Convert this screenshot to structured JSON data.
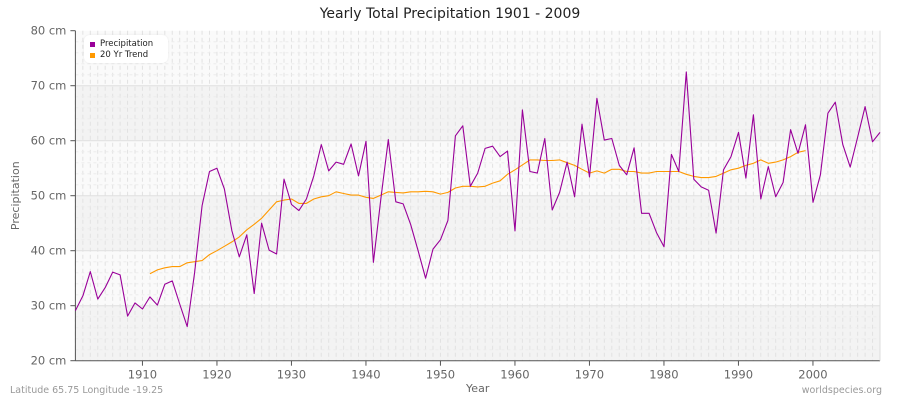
{
  "title": "Yearly Total Precipitation 1901 - 2009",
  "footer": {
    "location": "Latitude 65.75 Longitude -19.25",
    "source": "worldspecies.org"
  },
  "colors": {
    "precipitation": "#990099",
    "trend": "#ff9900",
    "band_light": "#fafafa",
    "band_dark": "#f3f3f3",
    "axis": "#555555",
    "tick_text": "#666666"
  },
  "legend": {
    "items": [
      {
        "label": "Precipitation",
        "color": "#990099"
      },
      {
        "label": "20 Yr Trend",
        "color": "#ff9900"
      }
    ]
  },
  "chart_data": {
    "type": "line",
    "title": "Yearly Total Precipitation 1901 - 2009",
    "xlabel": "Year",
    "ylabel": "Precipitation",
    "ylim": [
      20,
      80
    ],
    "xlim": [
      1901,
      2009
    ],
    "y_ticks": [
      "20 cm",
      "30 cm",
      "40 cm",
      "50 cm",
      "60 cm",
      "70 cm",
      "80 cm"
    ],
    "x_ticks": [
      "1910",
      "1920",
      "1930",
      "1940",
      "1950",
      "1960",
      "1970",
      "1980",
      "1990",
      "2000"
    ],
    "grid": true,
    "legend_position": "top-left",
    "series": [
      {
        "name": "Precipitation",
        "color": "#990099",
        "x_start": 1901,
        "values": [
          29.1,
          31.8,
          36.2,
          31.2,
          33.3,
          36.1,
          35.6,
          28.1,
          30.5,
          29.4,
          31.6,
          30.1,
          33.9,
          34.5,
          30.3,
          26.2,
          36.0,
          48.2,
          54.4,
          55.0,
          51.2,
          43.6,
          38.9,
          42.9,
          32.2,
          45.0,
          40.1,
          39.4,
          53.0,
          48.4,
          47.3,
          49.4,
          53.6,
          59.3,
          54.5,
          56.1,
          55.7,
          59.4,
          53.6,
          59.9,
          37.9,
          49.5,
          60.2,
          48.9,
          48.5,
          44.8,
          40.0,
          35.0,
          40.3,
          42.0,
          45.5,
          60.9,
          62.7,
          51.7,
          54.1,
          58.6,
          59.0,
          57.1,
          58.1,
          43.6,
          65.6,
          54.4,
          54.1,
          60.4,
          47.4,
          50.6,
          56.1,
          49.8,
          63.0,
          53.4,
          67.7,
          60.1,
          60.4,
          55.5,
          53.8,
          58.7,
          46.8,
          46.8,
          43.3,
          40.7,
          57.5,
          54.4,
          72.5,
          53.0,
          51.6,
          51.0,
          43.2,
          54.7,
          57.1,
          61.5,
          53.2,
          64.7,
          49.4,
          55.3,
          49.8,
          52.4,
          62.0,
          57.7,
          62.9,
          48.8,
          53.8,
          65.0,
          67.0,
          59.3,
          55.2,
          60.6,
          66.2,
          59.8,
          61.5
        ]
      },
      {
        "name": "20 Yr Trend",
        "color": "#ff9900",
        "x_start": 1911,
        "values": [
          35.8,
          36.5,
          36.9,
          37.1,
          37.1,
          37.8,
          38.0,
          38.2,
          39.3,
          40.0,
          40.8,
          41.6,
          42.5,
          43.8,
          44.8,
          45.9,
          47.4,
          48.9,
          49.2,
          49.4,
          48.6,
          48.6,
          49.4,
          49.8,
          50.0,
          50.7,
          50.4,
          50.1,
          50.1,
          49.7,
          49.5,
          50.1,
          50.7,
          50.6,
          50.5,
          50.7,
          50.7,
          50.8,
          50.7,
          50.3,
          50.6,
          51.4,
          51.7,
          51.7,
          51.6,
          51.7,
          52.3,
          52.7,
          53.9,
          54.7,
          55.6,
          56.5,
          56.5,
          56.4,
          56.4,
          56.5,
          56.0,
          55.5,
          54.8,
          54.1,
          54.5,
          54.1,
          54.8,
          54.8,
          54.4,
          54.4,
          54.1,
          54.1,
          54.4,
          54.4,
          54.4,
          54.4,
          53.9,
          53.5,
          53.3,
          53.3,
          53.5,
          54.1,
          54.7,
          55.0,
          55.5,
          55.9,
          56.5,
          55.9,
          56.1,
          56.5,
          57.1,
          57.9,
          58.2
        ]
      }
    ]
  }
}
